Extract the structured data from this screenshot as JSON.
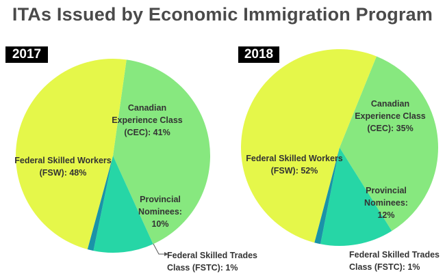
{
  "title": "ITAs Issued by Economic Immigration Program",
  "chart_data": [
    {
      "type": "pie",
      "year": "2017",
      "slices": [
        {
          "name": "Canadian Experience Class",
          "value": 41,
          "label_lines": [
            "Canadian",
            "Experience Class",
            "(CEC): 41%"
          ],
          "color": "#87e87f"
        },
        {
          "name": "Provincial Nominees",
          "value": 10,
          "label_lines": [
            "Provincial",
            "Nominees:",
            "10%"
          ],
          "color": "#26d6a6"
        },
        {
          "name": "Federal Skilled Trades Class",
          "value": 1,
          "label_lines": [
            "Federal Skilled Trades",
            "Class (FSTC): 1%"
          ],
          "color": "#1a93a8"
        },
        {
          "name": "Federal Skilled Workers",
          "value": 48,
          "label_lines": [
            "Federal Skilled Workers",
            "(FSW): 48%"
          ],
          "color": "#e5f74a"
        }
      ]
    },
    {
      "type": "pie",
      "year": "2018",
      "slices": [
        {
          "name": "Canadian Experience Class",
          "value": 35,
          "label_lines": [
            "Canadian",
            "Experience Class",
            "(CEC): 35%"
          ],
          "color": "#87e87f"
        },
        {
          "name": "Provincial Nominees",
          "value": 12,
          "label_lines": [
            "Provincial",
            "Nominees:",
            "12%"
          ],
          "color": "#26d6a6"
        },
        {
          "name": "Federal Skilled Trades Class",
          "value": 1,
          "label_lines": [
            "Federal Skilled Trades",
            "Class (FSTC): 1%"
          ],
          "color": "#1a93a8"
        },
        {
          "name": "Federal Skilled Workers",
          "value": 52,
          "label_lines": [
            "Federal Skilled Workers",
            "(FSW): 52%"
          ],
          "color": "#e5f74a"
        }
      ]
    }
  ]
}
